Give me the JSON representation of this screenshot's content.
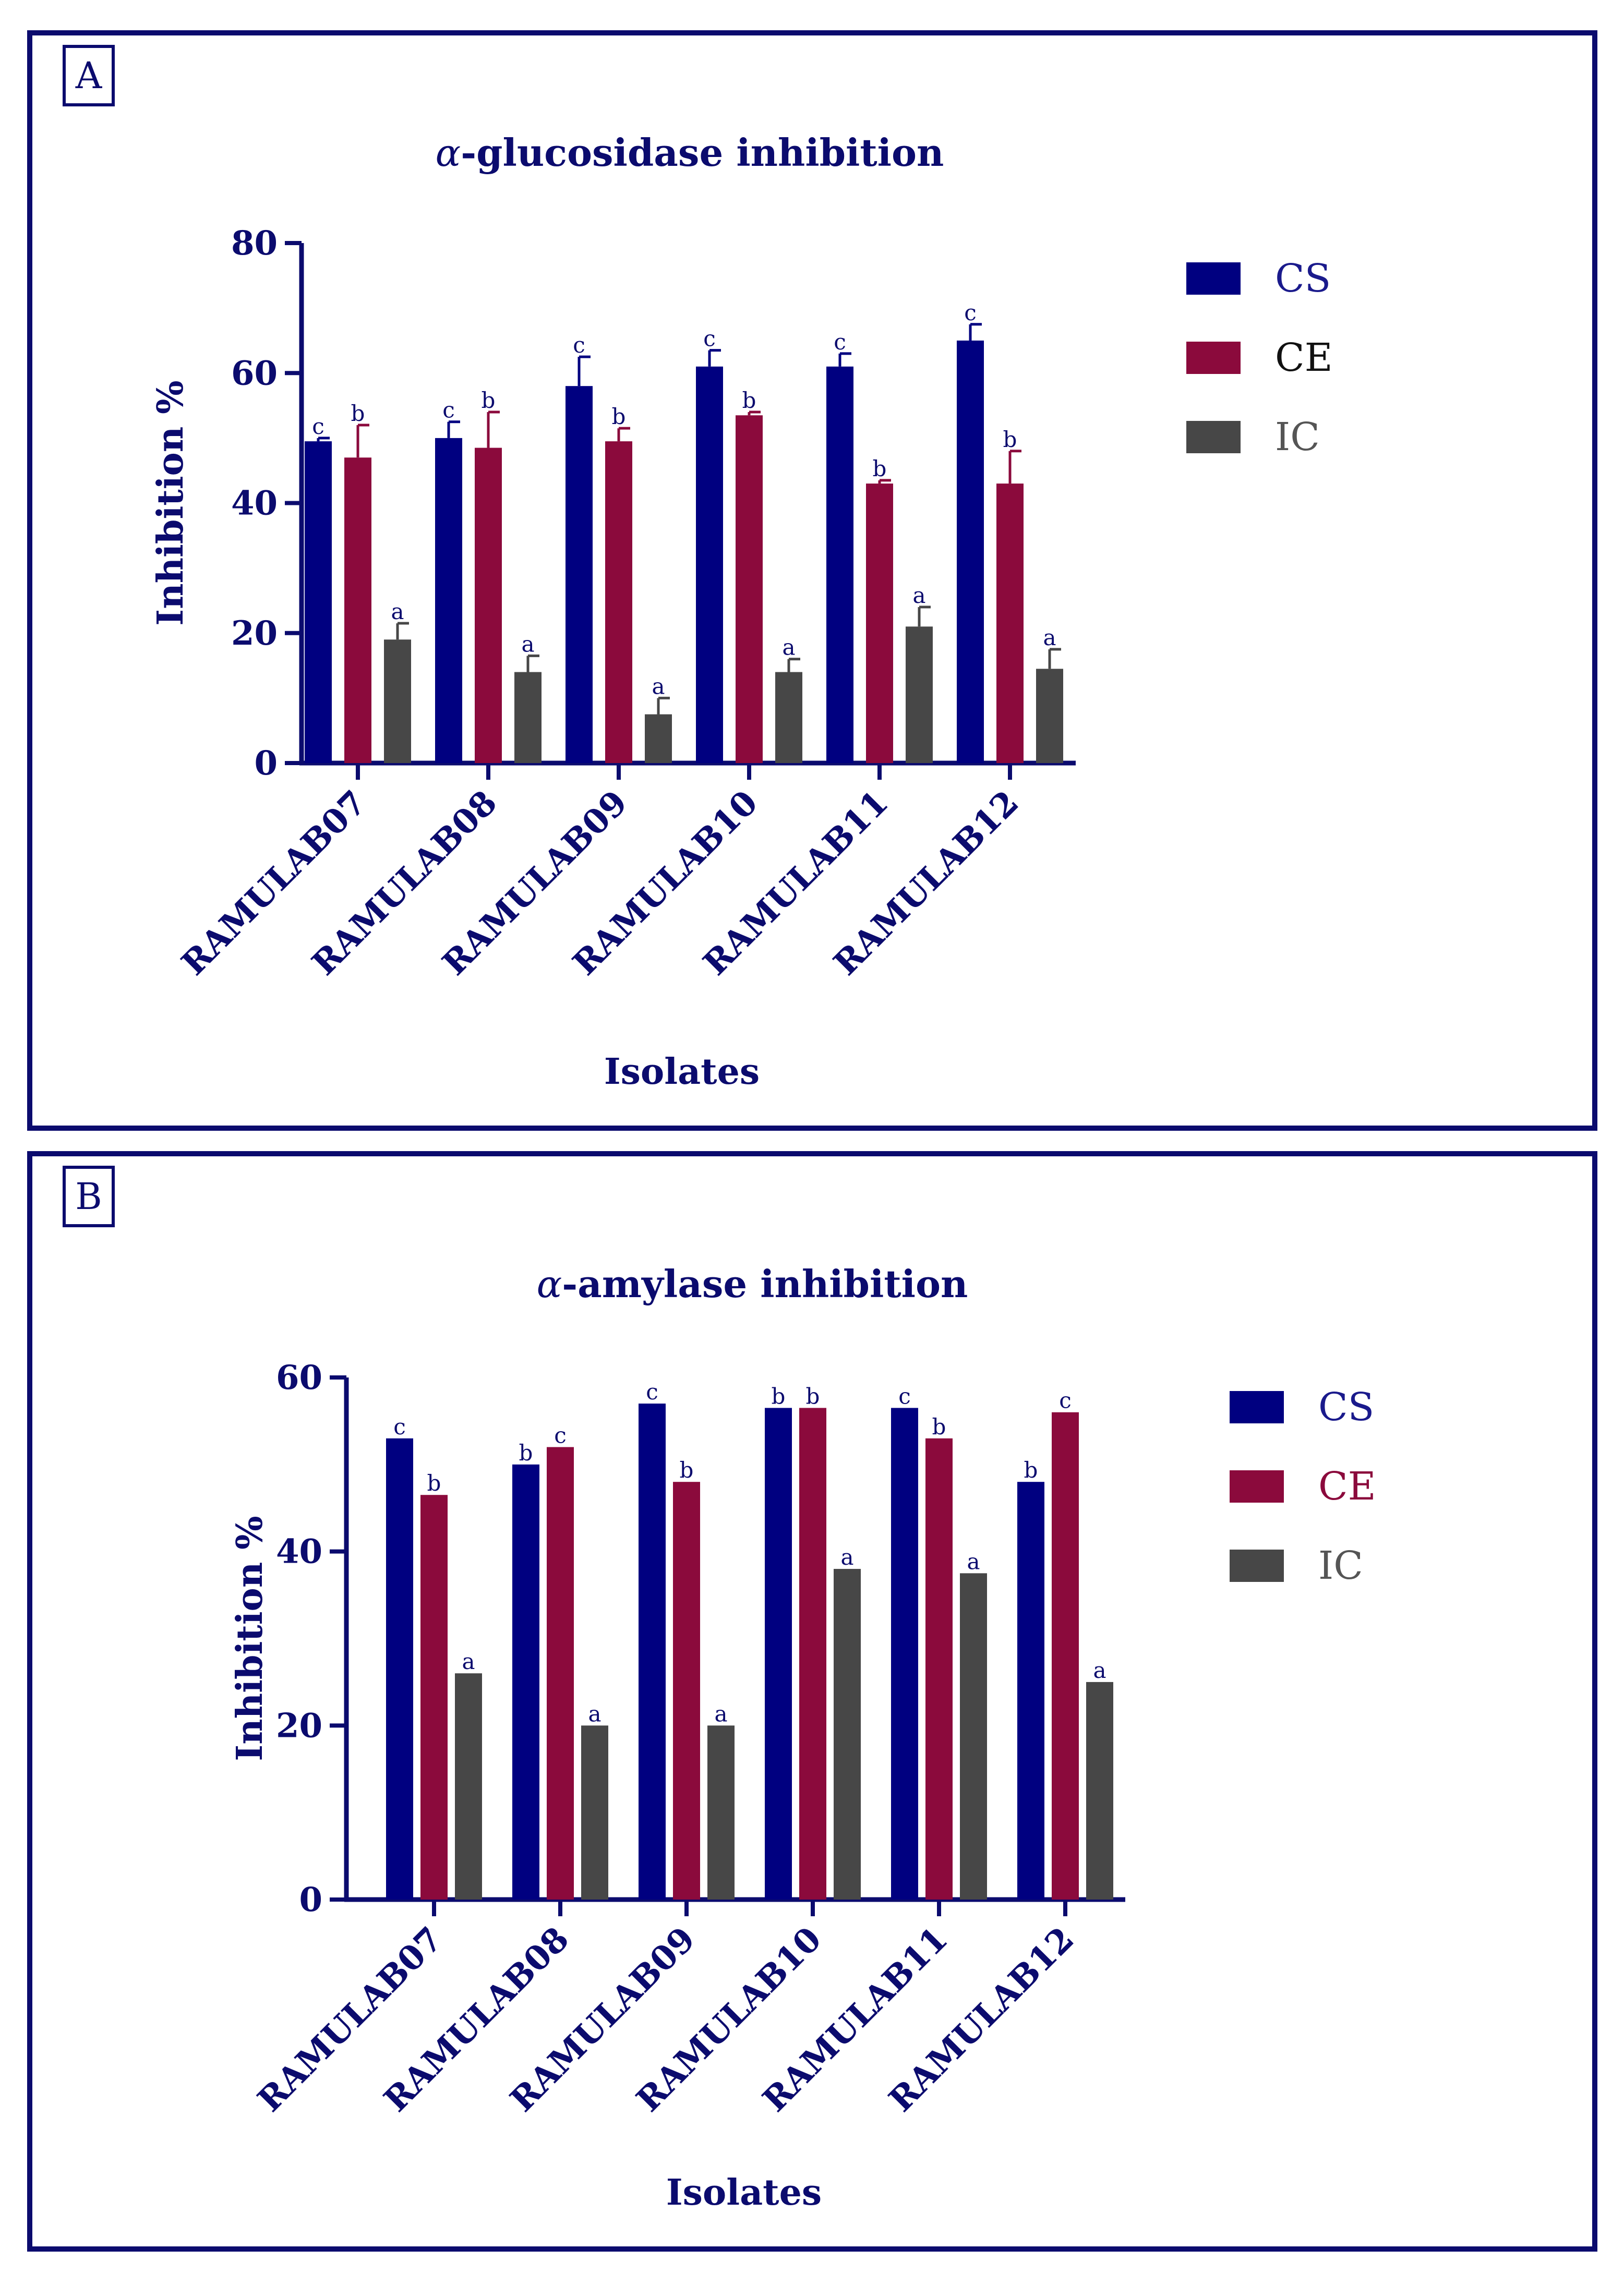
{
  "panels": [
    {
      "label": "A",
      "legend_text_colors": [
        "#1a1a8c",
        "#111111",
        "#555555"
      ]
    },
    {
      "label": "B",
      "legend_text_colors": [
        "#1a1a8c",
        "#8b0a3c",
        "#555555"
      ]
    }
  ],
  "colors": {
    "CS": "#000080",
    "CE": "#8b0a3c",
    "IC": "#474747",
    "axis": "#0b0b6e"
  },
  "chart_data": [
    {
      "type": "bar",
      "title": "α-glucosidase inhibition",
      "xlabel": "Isolates",
      "ylabel": "Inhibition %",
      "ylim": [
        0,
        80
      ],
      "yticks": [
        0,
        20,
        40,
        60,
        80
      ],
      "legend_position": "top-right",
      "categories": [
        "RAMULAB07",
        "RAMULAB08",
        "RAMULAB09",
        "RAMULAB10",
        "RAMULAB11",
        "RAMULAB12"
      ],
      "series": [
        {
          "name": "CS",
          "values": [
            49.5,
            50,
            58,
            61,
            61,
            65
          ],
          "errors": [
            0.5,
            2.5,
            4.5,
            2.5,
            2,
            2.5
          ],
          "letters": [
            "c",
            "c",
            "c",
            "c",
            "c",
            "c"
          ]
        },
        {
          "name": "CE",
          "values": [
            47,
            48.5,
            49.5,
            53.5,
            43,
            43
          ],
          "errors": [
            5,
            5.5,
            2,
            0.5,
            0.5,
            5
          ],
          "letters": [
            "b",
            "b",
            "b",
            "b",
            "b",
            "b"
          ]
        },
        {
          "name": "IC",
          "values": [
            19,
            14,
            7.5,
            14,
            21,
            14.5
          ],
          "errors": [
            2.5,
            2.5,
            2.5,
            2,
            3,
            3
          ],
          "letters": [
            "a",
            "a",
            "a",
            "a",
            "a",
            "a"
          ]
        }
      ]
    },
    {
      "type": "bar",
      "title": "α-amylase inhibition",
      "xlabel": "Isolates",
      "ylabel": "Inhibition %",
      "ylim": [
        0,
        60
      ],
      "yticks": [
        0,
        20,
        40,
        60
      ],
      "legend_position": "top-right",
      "categories": [
        "RAMULAB07",
        "RAMULAB08",
        "RAMULAB09",
        "RAMULAB10",
        "RAMULAB11",
        "RAMULAB12"
      ],
      "series": [
        {
          "name": "CS",
          "values": [
            53,
            50,
            57,
            56.5,
            56.5,
            48
          ],
          "errors": [
            0,
            0,
            0,
            0,
            0,
            0
          ],
          "letters": [
            "c",
            "b",
            "c",
            "b",
            "c",
            "b"
          ]
        },
        {
          "name": "CE",
          "values": [
            46.5,
            52,
            48,
            56.5,
            53,
            56
          ],
          "errors": [
            0,
            0,
            0,
            0,
            0,
            0
          ],
          "letters": [
            "b",
            "c",
            "b",
            "b",
            "b",
            "c"
          ]
        },
        {
          "name": "IC",
          "values": [
            26,
            20,
            20,
            38,
            37.5,
            25
          ],
          "errors": [
            0,
            0,
            0,
            0,
            0,
            0
          ],
          "letters": [
            "a",
            "a",
            "a",
            "a",
            "a",
            "a"
          ]
        }
      ]
    }
  ]
}
